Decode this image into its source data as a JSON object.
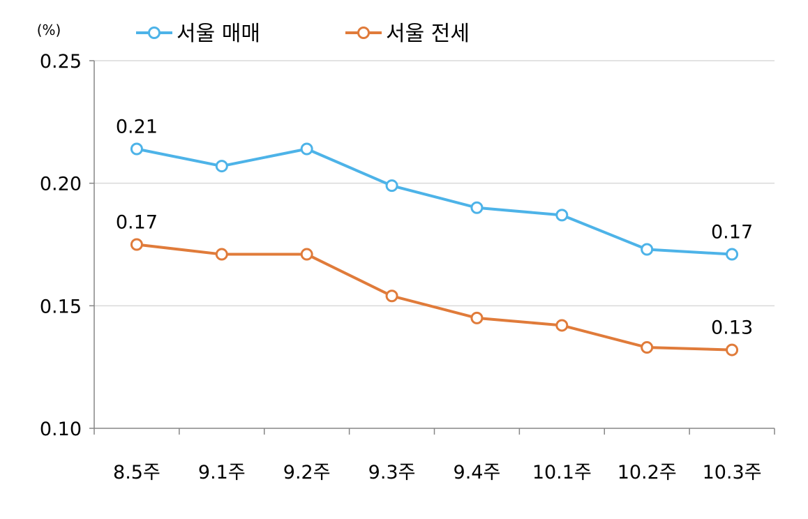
{
  "chart_data": {
    "type": "line",
    "unit_label": "(%)",
    "categories": [
      "8.5주",
      "9.1주",
      "9.2주",
      "9.3주",
      "9.4주",
      "10.1주",
      "10.2주",
      "10.3주"
    ],
    "ylim": [
      0.1,
      0.25
    ],
    "yticks": [
      "0.10",
      "0.15",
      "0.20",
      "0.25"
    ],
    "grid": true,
    "legend_position": "top",
    "series": [
      {
        "name": "서울 매매",
        "color": "#4db3e8",
        "values": [
          0.214,
          0.207,
          0.214,
          0.199,
          0.19,
          0.187,
          0.173,
          0.171
        ],
        "labels": {
          "0": "0.21",
          "7": "0.17"
        }
      },
      {
        "name": "서울 전세",
        "color": "#e07b3a",
        "values": [
          0.175,
          0.171,
          0.171,
          0.154,
          0.145,
          0.142,
          0.133,
          0.132
        ],
        "labels": {
          "0": "0.17",
          "7": "0.13"
        }
      }
    ]
  }
}
